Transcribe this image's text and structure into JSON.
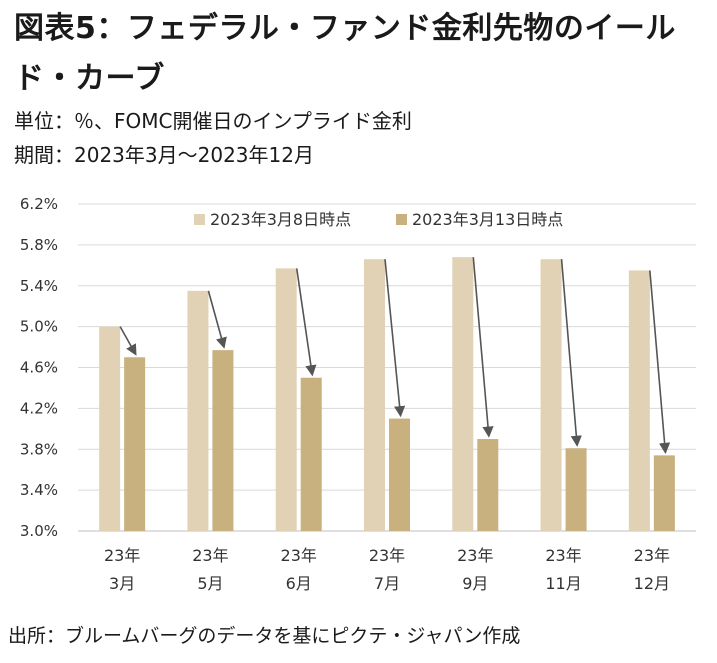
{
  "title": "図表5：フェデラル・ファンド金利先物のイールド・カーブ",
  "unit_line": "単位：％、FOMC開催日のインプライド金利",
  "period_line": "期間：2023年3月～2023年12月",
  "source": "出所：ブルームバーグのデータを基にピクテ・ジャパン作成",
  "colors": {
    "series1": "#e2d2b5",
    "series2": "#c8b07f",
    "arrow": "#555555",
    "grid": "#d9d9d9"
  },
  "chart_data": {
    "type": "bar",
    "categories": [
      [
        "23年",
        "3月"
      ],
      [
        "23年",
        "5月"
      ],
      [
        "23年",
        "6月"
      ],
      [
        "23年",
        "7月"
      ],
      [
        "23年",
        "9月"
      ],
      [
        "23年",
        "11月"
      ],
      [
        "23年",
        "12月"
      ]
    ],
    "series": [
      {
        "name": "2023年3月8日時点",
        "values": [
          5.0,
          5.35,
          5.57,
          5.66,
          5.68,
          5.66,
          5.55
        ]
      },
      {
        "name": "2023年3月13日時点",
        "values": [
          4.7,
          4.77,
          4.5,
          4.1,
          3.9,
          3.81,
          3.74
        ]
      }
    ],
    "ylim": [
      3.0,
      6.2
    ],
    "yticks": [
      "3.0%",
      "3.4%",
      "3.8%",
      "4.2%",
      "4.6%",
      "5.0%",
      "5.4%",
      "5.8%",
      "6.2%"
    ],
    "ytick_values": [
      3.0,
      3.4,
      3.8,
      4.2,
      4.6,
      5.0,
      5.4,
      5.8,
      6.2
    ],
    "grid": true,
    "legend_position": "top",
    "annotations": "arrows from each 3月8日 bar to the corresponding 3月13日 bar"
  }
}
